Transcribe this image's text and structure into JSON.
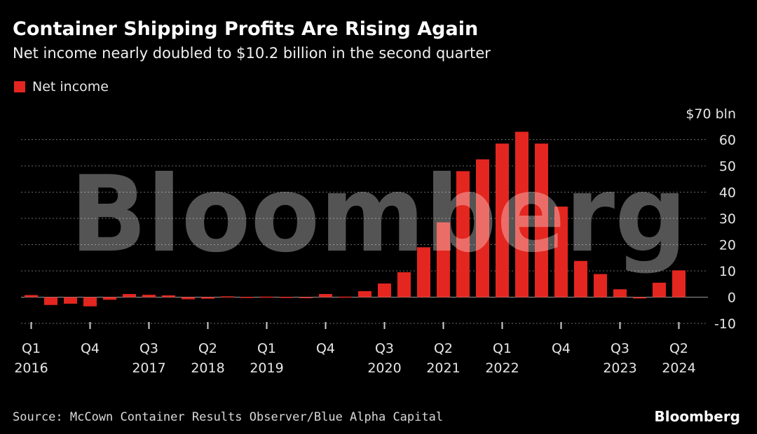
{
  "title": "Container Shipping Profits Are Rising Again",
  "subtitle": "Net income nearly doubled to $10.2 billion in the second quarter",
  "legend": {
    "label": "Net income",
    "color": "#e3261f"
  },
  "watermark": "Bloomberg",
  "source": "Source: McCown Container Results Observer/Blue Alpha Capital",
  "brand": "Bloomberg",
  "y_axis": {
    "ticks": [
      70,
      60,
      50,
      40,
      30,
      20,
      10,
      0,
      -10
    ],
    "tick_labels": [
      "$70 bln",
      "60",
      "50",
      "40",
      "30",
      "20",
      "10",
      "0",
      "-10"
    ]
  },
  "x_axis": {
    "labels": [
      {
        "index": 0,
        "quarter": "Q1",
        "year": "2016"
      },
      {
        "index": 3,
        "quarter": "Q4",
        "year": ""
      },
      {
        "index": 6,
        "quarter": "Q3",
        "year": "2017"
      },
      {
        "index": 9,
        "quarter": "Q2",
        "year": "2018"
      },
      {
        "index": 12,
        "quarter": "Q1",
        "year": "2019"
      },
      {
        "index": 15,
        "quarter": "Q4",
        "year": ""
      },
      {
        "index": 18,
        "quarter": "Q3",
        "year": "2020"
      },
      {
        "index": 21,
        "quarter": "Q2",
        "year": "2021"
      },
      {
        "index": 24,
        "quarter": "Q1",
        "year": "2022"
      },
      {
        "index": 27,
        "quarter": "Q4",
        "year": ""
      },
      {
        "index": 30,
        "quarter": "Q3",
        "year": "2023"
      },
      {
        "index": 33,
        "quarter": "Q2",
        "year": "2024"
      }
    ]
  },
  "chart_data": {
    "type": "bar",
    "title": "Container Shipping Profits Are Rising Again",
    "subtitle": "Net income nearly doubled to $10.2 billion in the second quarter",
    "ylabel": "$ bln",
    "xlabel": "",
    "ylim": [
      -10,
      70
    ],
    "grid": true,
    "legend_position": "top-left",
    "categories": [
      "Q1 2016",
      "Q2 2016",
      "Q3 2016",
      "Q4 2016",
      "Q1 2017",
      "Q2 2017",
      "Q3 2017",
      "Q4 2017",
      "Q1 2018",
      "Q2 2018",
      "Q3 2018",
      "Q4 2018",
      "Q1 2019",
      "Q2 2019",
      "Q3 2019",
      "Q4 2019",
      "Q1 2020",
      "Q2 2020",
      "Q3 2020",
      "Q4 2020",
      "Q1 2021",
      "Q2 2021",
      "Q3 2021",
      "Q4 2021",
      "Q1 2022",
      "Q2 2022",
      "Q3 2022",
      "Q4 2022",
      "Q1 2023",
      "Q2 2023",
      "Q3 2023",
      "Q4 2023",
      "Q1 2024",
      "Q2 2024"
    ],
    "series": [
      {
        "name": "Net income",
        "values": [
          0.8,
          -3.0,
          -2.5,
          -3.5,
          -1.0,
          1.2,
          0.9,
          0.7,
          -0.8,
          -0.6,
          0.3,
          0.1,
          0.2,
          0.1,
          0.0,
          1.2,
          0.2,
          2.3,
          5.2,
          9.5,
          19.0,
          28.5,
          48.0,
          52.5,
          58.5,
          63.0,
          58.5,
          34.5,
          13.8,
          8.8,
          3.0,
          -0.5,
          5.5,
          10.2
        ]
      }
    ]
  }
}
